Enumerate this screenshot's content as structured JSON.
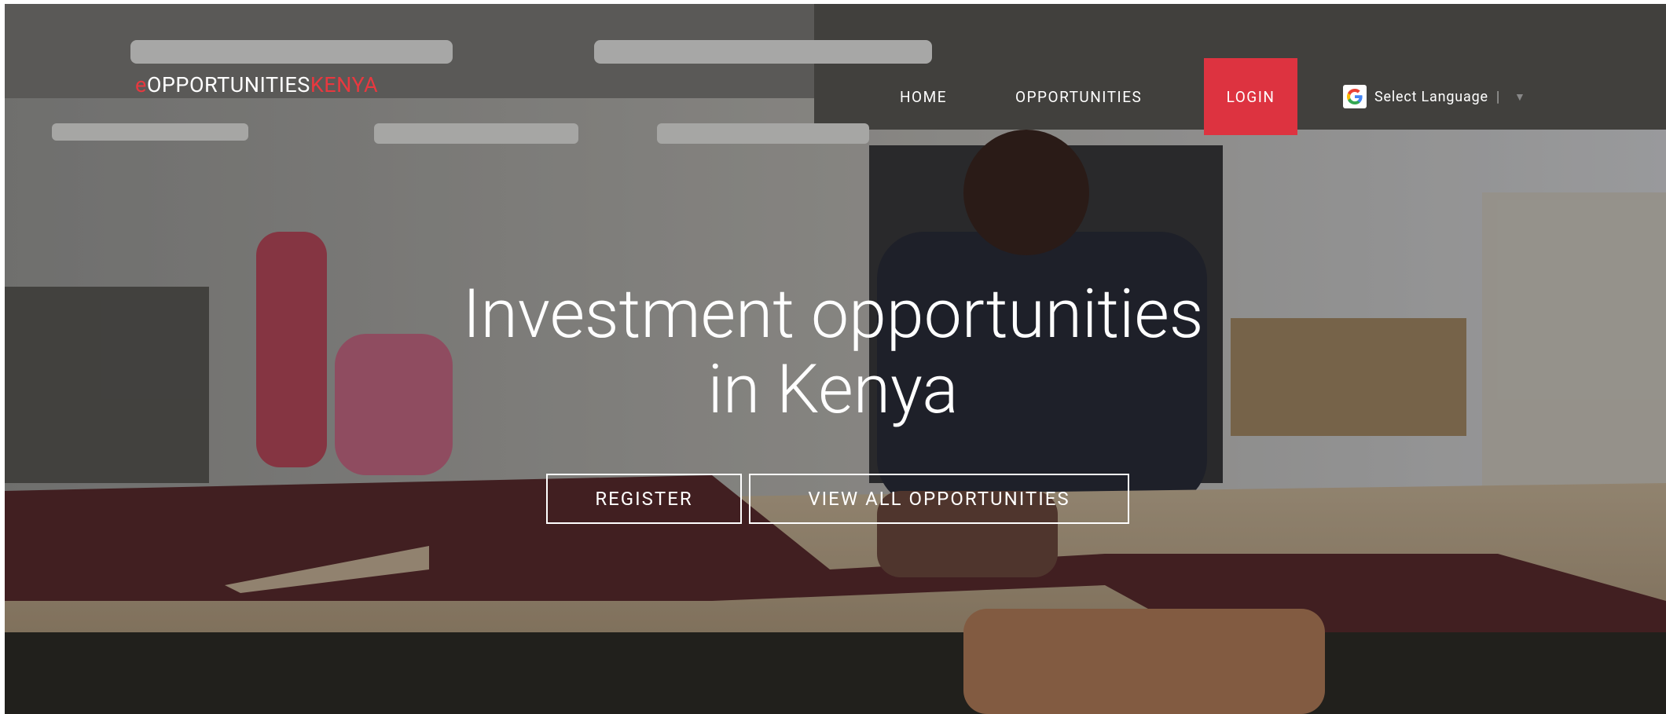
{
  "header": {
    "logo": {
      "prefix": "e",
      "name": "OPPORTUNITIES",
      "suffix": "KENYA"
    },
    "nav": [
      "HOME",
      "OPPORTUNITIES",
      "LOGIN"
    ],
    "language": "Select Language"
  },
  "hero": {
    "title_lines": [
      "Investment opportunities",
      "in Kenya"
    ],
    "buttons": [
      "REGISTER",
      "VIEW ALL OPPORTUNITIES"
    ]
  }
}
